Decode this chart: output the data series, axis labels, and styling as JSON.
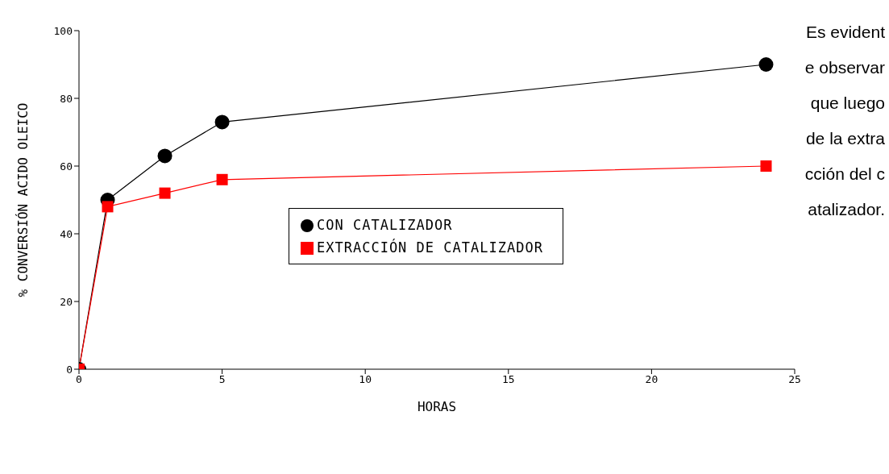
{
  "chart_data": {
    "type": "line",
    "xlabel": "HORAS",
    "ylabel": "% CONVERSIÓN ACIDO OLEICO",
    "xlim": [
      0,
      25
    ],
    "xticks": [
      0,
      5,
      10,
      15,
      20,
      25
    ],
    "ylim": [
      0,
      100
    ],
    "yticks": [
      0,
      20,
      40,
      60,
      80,
      100
    ],
    "grid": false,
    "legend": "center",
    "line_style": "solid",
    "series": [
      {
        "name": "CON CATALIZADOR",
        "color": "#000000",
        "marker": "circle",
        "x": [
          0,
          1,
          3,
          5,
          24
        ],
        "values": [
          0,
          50,
          63,
          73,
          90
        ]
      },
      {
        "name": "EXTRACCIÓN DE CATALIZADOR",
        "color": "#ff0000",
        "marker": "square",
        "x": [
          0,
          1,
          3,
          5,
          24
        ],
        "values": [
          0,
          48,
          52,
          56,
          60
        ]
      }
    ],
    "annotations": [
      "Es evidente observar que luego de la extracción del catalizador."
    ]
  }
}
